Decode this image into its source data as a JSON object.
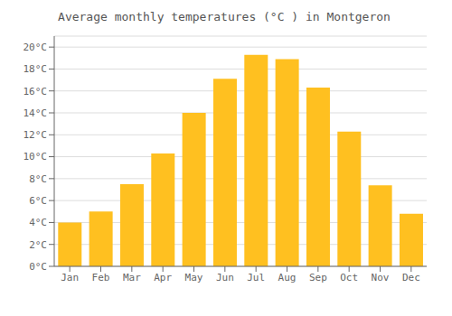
{
  "chart_data": {
    "type": "bar",
    "title": "Average monthly temperatures (°C ) in Montgeron",
    "categories": [
      "Jan",
      "Feb",
      "Mar",
      "Apr",
      "May",
      "Jun",
      "Jul",
      "Aug",
      "Sep",
      "Oct",
      "Nov",
      "Dec"
    ],
    "values": [
      4.0,
      5.0,
      7.5,
      10.3,
      14.0,
      17.1,
      19.3,
      18.9,
      16.3,
      12.3,
      7.4,
      4.8
    ],
    "color": "#FFC020",
    "ylim": [
      0,
      21
    ],
    "yticks": [
      {
        "value": 0,
        "label": "0°C"
      },
      {
        "value": 2,
        "label": "2°C"
      },
      {
        "value": 4,
        "label": "4°C"
      },
      {
        "value": 6,
        "label": "6°C"
      },
      {
        "value": 8,
        "label": "8°C"
      },
      {
        "value": 10,
        "label": "10°C"
      },
      {
        "value": 12,
        "label": "12°C"
      },
      {
        "value": 14,
        "label": "14°C"
      },
      {
        "value": 16,
        "label": "16°C"
      },
      {
        "value": 18,
        "label": "18°C"
      },
      {
        "value": 20,
        "label": "20°C"
      }
    ],
    "grid": true
  }
}
